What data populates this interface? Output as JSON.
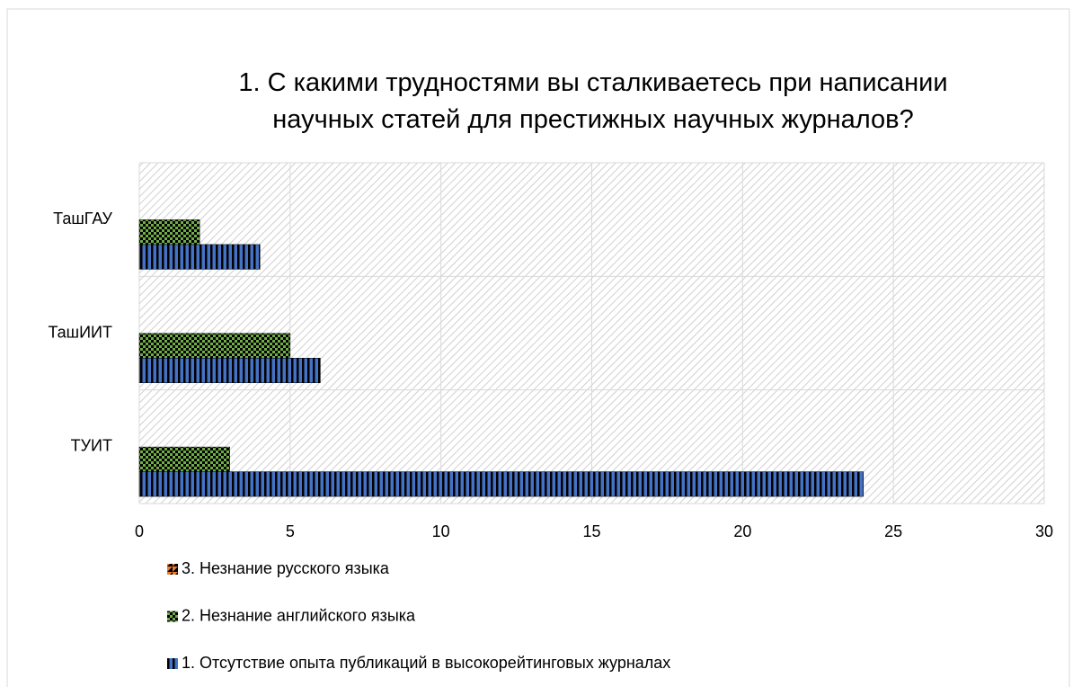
{
  "chart_data": {
    "type": "hbar",
    "title": "1. С какими трудностями вы сталкиваетесь при написании научных статей для престижных научных журналов?",
    "categories": [
      "ТУИТ",
      "ТашИИТ",
      "ТашГАУ"
    ],
    "series": [
      {
        "name": "1. Отсутствие опыта публикаций в высокорейтинговых журналах",
        "color": "#4472c4",
        "values": [
          24,
          6,
          4
        ]
      },
      {
        "name": "2. Незнание английского языка",
        "color": "#70ad47",
        "values": [
          3,
          5,
          2
        ]
      },
      {
        "name": "3. Незнание русского языка",
        "color": "#ed7d31",
        "values": [
          0,
          0,
          0
        ]
      }
    ],
    "xlim": [
      0,
      30
    ],
    "xticks": [
      0,
      5,
      10,
      15,
      20,
      25,
      30
    ],
    "grid": true
  }
}
